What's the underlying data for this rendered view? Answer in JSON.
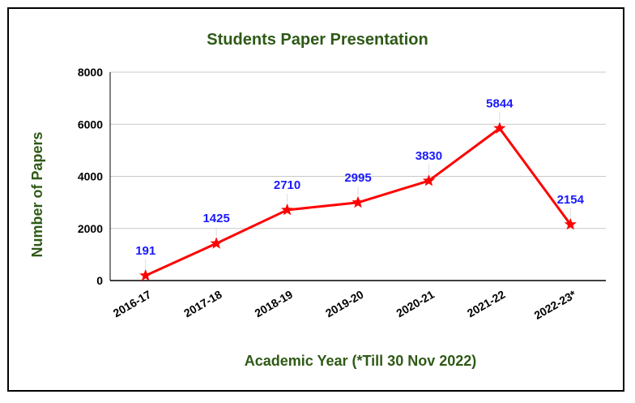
{
  "chart_data": {
    "type": "line",
    "title": "Students Paper Presentation",
    "xlabel": "Academic Year (*Till 30 Nov 2022)",
    "ylabel": "Number of Papers",
    "categories": [
      "2016-17",
      "2017-18",
      "2018-19",
      "2019-20",
      "2020-21",
      "2021-22",
      "2022-23*"
    ],
    "series": [
      {
        "values": [
          191,
          1425,
          2710,
          2995,
          3830,
          5844,
          2154
        ]
      }
    ],
    "ylim": [
      0,
      8000
    ],
    "yticks": [
      0,
      2000,
      4000,
      6000,
      8000
    ],
    "grid": true,
    "marker": "star",
    "data_labels": true
  },
  "colors": {
    "title": "#2e5a16",
    "axis_title": "#2e5a16",
    "line": "#ff0000",
    "marker": "#ff0000",
    "data_label": "#1a1aff",
    "grid": "#c8c8c8"
  }
}
